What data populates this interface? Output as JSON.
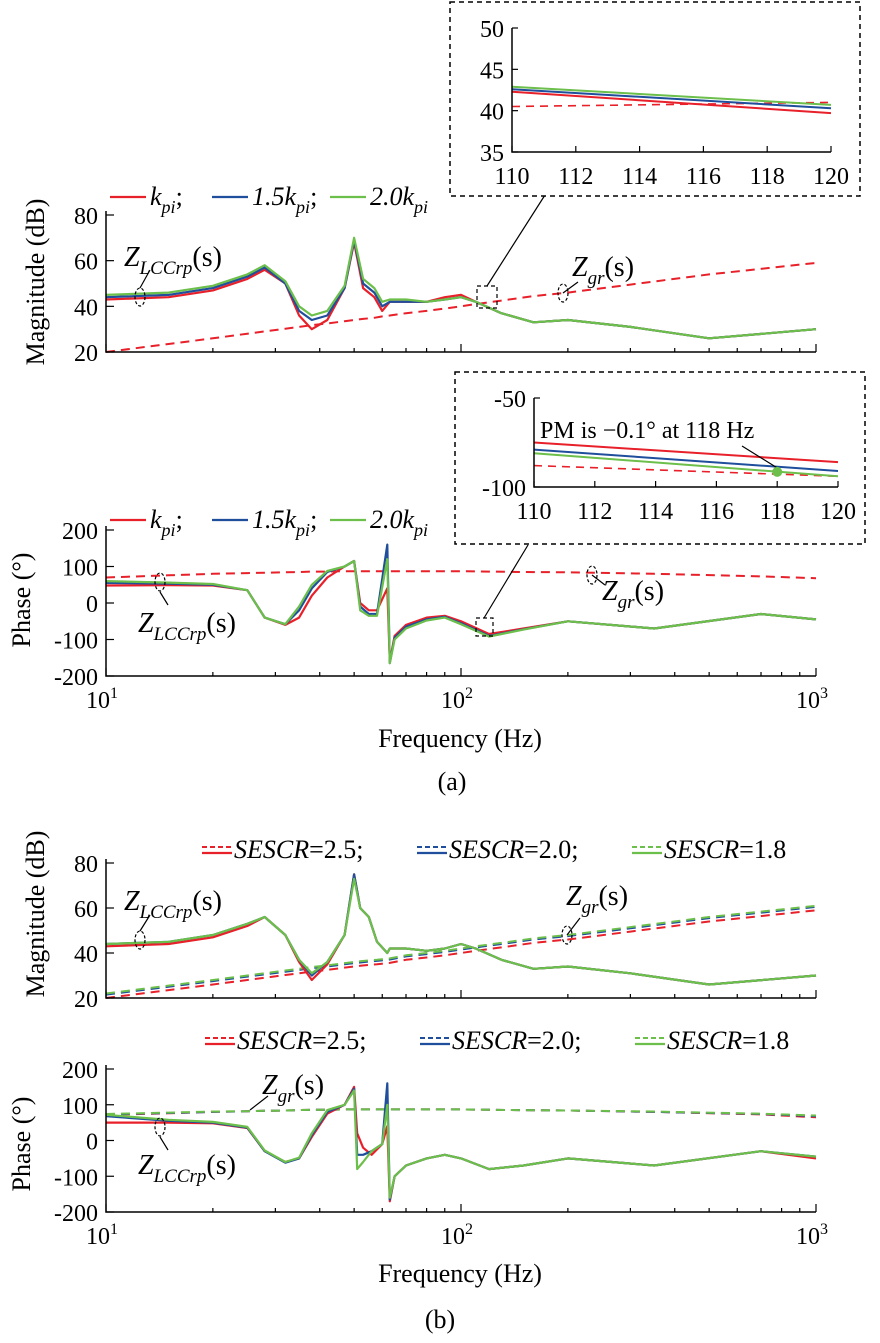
{
  "colors": {
    "red": "#e8202a",
    "blue": "#1f4e9c",
    "green": "#6cbf4a",
    "axis": "#000000",
    "zgr": "#e8202a",
    "zgr_b": "#8aa856"
  },
  "axis_labels": {
    "magnitude": "Magnitude (dB)",
    "phase": "Phase (°)",
    "frequency": "Frequency (Hz)"
  },
  "captions": {
    "a": "(a)",
    "b": "(b)"
  },
  "legend_a": [
    {
      "base": "k",
      "sub": "pi",
      "tail": ";",
      "color": "red"
    },
    {
      "base": "1.5k",
      "sub": "pi",
      "tail": ";",
      "color": "blue"
    },
    {
      "base": "2.0k",
      "sub": "pi",
      "tail": "",
      "color": "green"
    }
  ],
  "legend_b": [
    {
      "text": "SESCR=2.5;",
      "italic_part": "SESCR",
      "value": "=2.5;",
      "color": "red"
    },
    {
      "text": "SESCR=2.0;",
      "italic_part": "SESCR",
      "value": "=2.0;",
      "color": "blue"
    },
    {
      "text": "SESCR=1.8",
      "italic_part": "SESCR",
      "value": "=1.8",
      "color": "green"
    }
  ],
  "curve_labels": {
    "zlcc_base": "Z",
    "zlcc_sub": "LCCrp",
    "zgr_base": "Z",
    "zgr_sub": "gr",
    "arg": "(s)"
  },
  "x_ticks": [
    {
      "base": "10",
      "exp": "1"
    },
    {
      "base": "10",
      "exp": "2"
    },
    {
      "base": "10",
      "exp": "3"
    }
  ],
  "mag_ticks": [
    "20",
    "40",
    "60",
    "80"
  ],
  "phase_ticks": [
    "-200",
    "-100",
    "0",
    "100",
    "200"
  ],
  "inset1": {
    "x_ticks": [
      "110",
      "112",
      "114",
      "116",
      "118",
      "120"
    ],
    "y_ticks": [
      "35",
      "40",
      "45",
      "50"
    ]
  },
  "inset2": {
    "x_ticks": [
      "110",
      "112",
      "114",
      "116",
      "118",
      "120"
    ],
    "y_ticks": [
      "-50",
      "-100"
    ],
    "annotation": "PM is −0.1° at 118 Hz"
  },
  "chart_data": [
    {
      "type": "line",
      "xscale": "log",
      "xlabel": "Frequency (Hz)",
      "ylabel": "Magnitude (dB)",
      "xlim": [
        10,
        1000
      ],
      "ylim": [
        20,
        80
      ],
      "x": [
        10,
        15,
        20,
        25,
        28,
        32,
        35,
        38,
        42,
        47,
        50,
        53,
        57,
        60,
        63,
        70,
        80,
        90,
        100,
        110,
        130,
        160,
        200,
        300,
        500,
        1000
      ],
      "series": [
        {
          "name": "k_pi",
          "color": "red",
          "values": [
            43,
            44,
            47,
            52,
            56,
            50,
            36,
            30,
            34,
            48,
            68,
            48,
            44,
            38,
            42,
            42,
            42,
            44,
            45,
            42,
            37,
            33,
            34,
            31,
            26,
            30
          ]
        },
        {
          "name": "1.5k_pi",
          "color": "blue",
          "values": [
            44,
            45,
            48,
            53,
            57,
            50,
            38,
            34,
            36,
            48,
            69,
            50,
            46,
            40,
            42,
            42,
            42,
            43,
            44,
            42,
            37,
            33,
            34,
            31,
            26,
            30
          ]
        },
        {
          "name": "2.0k_pi",
          "color": "green",
          "values": [
            45,
            46,
            49,
            54,
            58,
            51,
            40,
            36,
            38,
            49,
            70,
            52,
            48,
            42,
            43,
            43,
            42,
            43,
            44,
            42,
            37,
            33,
            34,
            31,
            26,
            30
          ]
        },
        {
          "name": "Z_gr(s)",
          "color": "red",
          "dashed": true,
          "values": [
            20,
            23.5,
            26,
            28,
            29,
            30.2,
            31,
            31.8,
            32.5,
            33.5,
            34,
            34.5,
            35,
            35.6,
            36,
            37,
            38,
            39,
            40,
            41,
            42.5,
            44.5,
            46,
            49.5,
            54,
            59
          ]
        }
      ]
    },
    {
      "type": "line",
      "xscale": "log",
      "xlabel": "Frequency (Hz)",
      "ylabel": "Phase (°)",
      "xlim": [
        10,
        1000
      ],
      "ylim": [
        -200,
        200
      ],
      "x": [
        10,
        15,
        20,
        25,
        28,
        32,
        35,
        38,
        42,
        47,
        50,
        52,
        55,
        58,
        62,
        63,
        65,
        70,
        80,
        90,
        100,
        120,
        150,
        200,
        350,
        700,
        1000
      ],
      "series": [
        {
          "name": "k_pi",
          "color": "red",
          "values": [
            48,
            49,
            48,
            35,
            -40,
            -60,
            -40,
            20,
            70,
            100,
            115,
            0,
            -20,
            -20,
            40,
            -160,
            -90,
            -60,
            -40,
            -35,
            -50,
            -85,
            -70,
            -50,
            -70,
            -30,
            -45
          ]
        },
        {
          "name": "1.5k_pi",
          "color": "blue",
          "values": [
            55,
            53,
            50,
            35,
            -40,
            -58,
            -20,
            40,
            85,
            100,
            115,
            -10,
            -30,
            -30,
            160,
            -165,
            -95,
            -65,
            -45,
            -38,
            -55,
            -90,
            -72,
            -50,
            -70,
            -30,
            -45
          ]
        },
        {
          "name": "2.0k_pi",
          "color": "green",
          "values": [
            60,
            56,
            52,
            35,
            -40,
            -58,
            -10,
            50,
            88,
            100,
            115,
            -20,
            -35,
            -35,
            120,
            -165,
            -100,
            -70,
            -48,
            -40,
            -58,
            -92,
            -73,
            -50,
            -70,
            -30,
            -45
          ]
        },
        {
          "name": "Z_gr(s)",
          "color": "red",
          "dashed": true,
          "values": [
            70,
            76,
            80,
            82,
            83,
            84,
            85,
            86,
            86,
            87,
            87,
            87,
            87,
            87,
            87,
            87,
            87,
            87,
            87,
            87,
            87,
            86,
            85,
            84,
            80,
            73,
            68
          ]
        }
      ]
    },
    {
      "type": "line",
      "xscale": "log",
      "xlabel": "Frequency (Hz)",
      "ylabel": "Magnitude (dB)",
      "xlim": [
        10,
        1000
      ],
      "ylim": [
        20,
        80
      ],
      "x": [
        10,
        15,
        20,
        25,
        28,
        32,
        35,
        38,
        42,
        47,
        50,
        52,
        55,
        58,
        62,
        63,
        70,
        80,
        90,
        100,
        110,
        130,
        160,
        200,
        300,
        500,
        1000
      ],
      "series": [
        {
          "name": "SESCR=2.5",
          "color": "red",
          "values": [
            43,
            44,
            47,
            52,
            56,
            48,
            36,
            28,
            35,
            48,
            75,
            60,
            56,
            45,
            40,
            42,
            42,
            41,
            42,
            44,
            42,
            37,
            33,
            34,
            31,
            26,
            30
          ]
        },
        {
          "name": "SESCR=2.0",
          "color": "blue",
          "values": [
            44,
            45,
            48,
            53,
            56,
            48,
            37,
            30,
            36,
            48,
            75,
            60,
            56,
            45,
            40,
            42,
            42,
            41,
            42,
            44,
            42,
            37,
            33,
            34,
            31,
            26,
            30
          ]
        },
        {
          "name": "SESCR=1.8",
          "color": "green",
          "values": [
            44,
            45,
            48,
            53,
            56,
            48,
            37,
            31,
            36,
            48,
            73,
            60,
            56,
            45,
            40,
            42,
            42,
            41,
            42,
            44,
            42,
            37,
            33,
            34,
            31,
            26,
            30
          ]
        },
        {
          "name": "Z_gr SESCR=2.5",
          "color": "red",
          "dashed": true,
          "values": [
            20,
            23.5,
            26,
            28,
            29,
            30.2,
            31,
            31.8,
            32.5,
            33.5,
            34,
            34.3,
            34.7,
            35,
            35.5,
            35.6,
            37,
            38,
            39,
            40,
            41,
            42.5,
            44.5,
            46,
            49.5,
            54,
            59
          ]
        },
        {
          "name": "Z_gr SESCR=2.0",
          "color": "blue",
          "dashed": true,
          "values": [
            21.5,
            25,
            27.5,
            29.5,
            30.5,
            31.7,
            32.5,
            33.3,
            34,
            35,
            35.5,
            35.8,
            36.2,
            36.5,
            37,
            37.1,
            38.5,
            39.5,
            40.5,
            41.5,
            42.5,
            44,
            46,
            47.5,
            51,
            55.5,
            60.5
          ]
        },
        {
          "name": "Z_gr SESCR=1.8",
          "color": "green",
          "dashed": true,
          "values": [
            22,
            25.5,
            28,
            30,
            31,
            32.2,
            33,
            33.8,
            34.5,
            35.5,
            36,
            36.3,
            36.7,
            37,
            37.5,
            37.6,
            39,
            40,
            41,
            42,
            43,
            44.5,
            46.5,
            48,
            51.5,
            56,
            61
          ]
        }
      ]
    },
    {
      "type": "line",
      "xscale": "log",
      "xlabel": "Frequency (Hz)",
      "ylabel": "Phase (°)",
      "xlim": [
        10,
        1000
      ],
      "ylim": [
        -200,
        200
      ],
      "x": [
        10,
        15,
        20,
        25,
        28,
        32,
        35,
        38,
        42,
        47,
        50,
        51,
        53,
        56,
        60,
        62,
        63,
        65,
        70,
        80,
        90,
        100,
        120,
        150,
        200,
        350,
        700,
        1000
      ],
      "series": [
        {
          "name": "SESCR=2.5",
          "color": "red",
          "values": [
            50,
            50,
            48,
            35,
            -30,
            -60,
            -50,
            10,
            75,
            100,
            150,
            20,
            -20,
            -40,
            -10,
            40,
            -170,
            -100,
            -70,
            -50,
            -40,
            -50,
            -80,
            -70,
            -50,
            -70,
            -30,
            -50
          ]
        },
        {
          "name": "SESCR=2.0",
          "color": "blue",
          "values": [
            68,
            55,
            50,
            36,
            -30,
            -62,
            -50,
            15,
            80,
            100,
            145,
            -40,
            -40,
            -30,
            -10,
            160,
            -165,
            -100,
            -70,
            -50,
            -40,
            -50,
            -80,
            -70,
            -50,
            -70,
            -30,
            -45
          ]
        },
        {
          "name": "SESCR=1.8",
          "color": "green",
          "values": [
            72,
            58,
            52,
            38,
            -28,
            -60,
            -48,
            20,
            85,
            100,
            140,
            -80,
            -60,
            -30,
            -10,
            100,
            -160,
            -100,
            -70,
            -50,
            -40,
            -50,
            -80,
            -70,
            -50,
            -70,
            -30,
            -45
          ]
        },
        {
          "name": "Z_gr SESCR=2.5",
          "color": "red",
          "dashed": true,
          "values": [
            72,
            76,
            80,
            82,
            83,
            84,
            85,
            86,
            86,
            87,
            87,
            87,
            87,
            87,
            87,
            87,
            87,
            87,
            87,
            87,
            87,
            87,
            86,
            85,
            84,
            80,
            73,
            65
          ]
        },
        {
          "name": "Z_gr SESCR=2.0",
          "color": "blue",
          "dashed": true,
          "values": [
            73,
            77,
            80,
            82,
            83,
            84,
            85,
            86,
            86,
            87,
            87,
            87,
            87,
            87,
            87,
            87,
            87,
            87,
            87,
            87,
            87,
            87,
            86,
            85,
            84,
            80,
            74,
            68
          ]
        },
        {
          "name": "Z_gr SESCR=1.8",
          "color": "green",
          "dashed": true,
          "values": [
            74,
            78,
            81,
            82,
            83,
            84,
            85,
            86,
            86,
            87,
            87,
            87,
            87,
            87,
            87,
            87,
            87,
            87,
            87,
            87,
            87,
            87,
            86,
            85,
            84,
            81,
            75,
            70
          ]
        }
      ]
    },
    {
      "type": "line",
      "xlabel": "",
      "ylabel": "",
      "xlim": [
        110,
        120
      ],
      "ylim": [
        35,
        50
      ],
      "x": [
        110,
        120
      ],
      "series": [
        {
          "name": "k_pi",
          "color": "red",
          "values": [
            42.3,
            39.7
          ]
        },
        {
          "name": "1.5k_pi",
          "color": "blue",
          "values": [
            42.6,
            40.3
          ]
        },
        {
          "name": "2.0k_pi",
          "color": "green",
          "values": [
            42.9,
            40.7
          ]
        },
        {
          "name": "Z_gr(s)",
          "color": "red",
          "dashed": true,
          "values": [
            40.5,
            41.0
          ]
        }
      ]
    },
    {
      "type": "line",
      "xlabel": "",
      "ylabel": "",
      "xlim": [
        110,
        120
      ],
      "ylim": [
        -100,
        -50
      ],
      "x": [
        110,
        120
      ],
      "series": [
        {
          "name": "k_pi",
          "color": "red",
          "values": [
            -75,
            -86
          ]
        },
        {
          "name": "1.5k_pi",
          "color": "blue",
          "values": [
            -79,
            -91
          ]
        },
        {
          "name": "2.0k_pi",
          "color": "green",
          "values": [
            -81,
            -94
          ]
        },
        {
          "name": "Z_gr(s)",
          "color": "red",
          "dashed": true,
          "values": [
            -88,
            -94
          ]
        }
      ],
      "annotation": {
        "text": "PM is −0.1° at 118 Hz",
        "x": 118,
        "y": -91.5
      }
    }
  ]
}
